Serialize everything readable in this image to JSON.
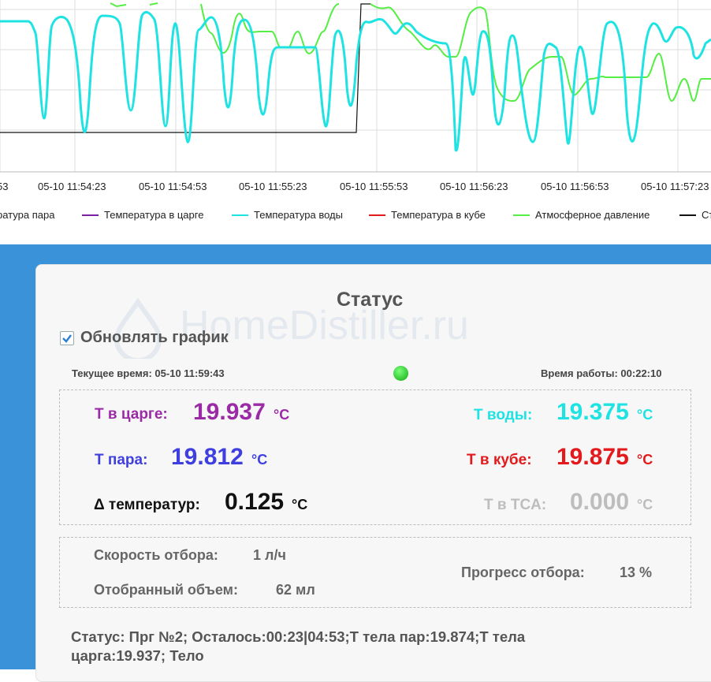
{
  "chart": {
    "x_ticks": [
      "53",
      "05-10 11:54:23",
      "05-10 11:54:53",
      "05-10 11:55:23",
      "05-10 11:55:53",
      "05-10 11:56:23",
      "05-10 11:56:53",
      "05-10 11:57:23"
    ],
    "legend": [
      {
        "label": "ратура пара",
        "color": "#7b3fb0"
      },
      {
        "label": "Температура в царге",
        "color": "#7b1fa2"
      },
      {
        "label": "Температура воды",
        "color": "#1fe3e3"
      },
      {
        "label": "Температура в кубе",
        "color": "#e31a1c"
      },
      {
        "label": "Атмосферное давление",
        "color": "#55ee44"
      },
      {
        "label": "Ст",
        "color": "#111111"
      }
    ],
    "colors": {
      "water": "#1fe3e3",
      "pressure": "#55ee44",
      "black": "#111111",
      "grid": "#dddddd"
    }
  },
  "status": {
    "title": "Статус",
    "update_chart_label": "Обновлять график",
    "update_chart_checked": true,
    "watermark": "HomeDistiller.ru",
    "current_time": "Текущее время: 05-10 11:59:43",
    "uptime": "Время работы: 00:22:10",
    "indicator_color": "#22cc22"
  },
  "temps": {
    "tsarga_label": "Т в царге:",
    "tsarga_value": "19.937",
    "tsarga_unit": "°C",
    "tsarga_color": "#9b2aa6",
    "water_label": "Т воды:",
    "water_value": "19.375",
    "water_unit": "°C",
    "water_color": "#1fe3e3",
    "steam_label": "Т пара:",
    "steam_value": "19.812",
    "steam_unit": "°C",
    "steam_color": "#3f3fe0",
    "kub_label": "Т в кубе:",
    "kub_value": "19.875",
    "kub_unit": "°C",
    "kub_color": "#e31a1c",
    "delta_label": "Δ температур:",
    "delta_value": "0.125",
    "delta_unit": "°C",
    "delta_color": "#111111",
    "tsa_label": "Т в TCA:",
    "tsa_value": "0.000",
    "tsa_unit": "°C",
    "tsa_color": "#bdbdbd"
  },
  "selection": {
    "speed_label": "Скорость отбора:",
    "speed_value": "1 л/ч",
    "volume_label": "Отобранный объем:",
    "volume_value": "62 мл",
    "progress_label": "Прогресс отбора:",
    "progress_value": "13 %"
  },
  "footer": {
    "line1": "Статус: Прг №2; Осталось:00:23|04:53;Т тела пар:19.874;Т тела",
    "line2": "царга:19.937; Тело"
  }
}
